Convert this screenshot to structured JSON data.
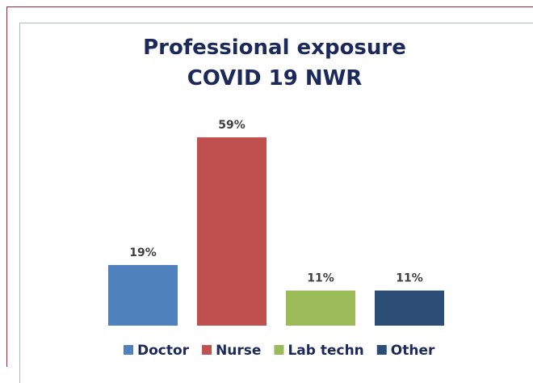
{
  "chart_data": {
    "type": "bar",
    "title": "Professional exposure COVID 19 NWR",
    "categories": [
      "Doctor",
      "Nurse",
      "Lab techn",
      "Other"
    ],
    "values": [
      19,
      59,
      11,
      11
    ],
    "value_labels": [
      "19%",
      "59%",
      "11%",
      "11%"
    ],
    "colors": [
      "#4f81bd",
      "#c0504d",
      "#9bbb59",
      "#2c4d75"
    ],
    "legend": "bottom"
  }
}
